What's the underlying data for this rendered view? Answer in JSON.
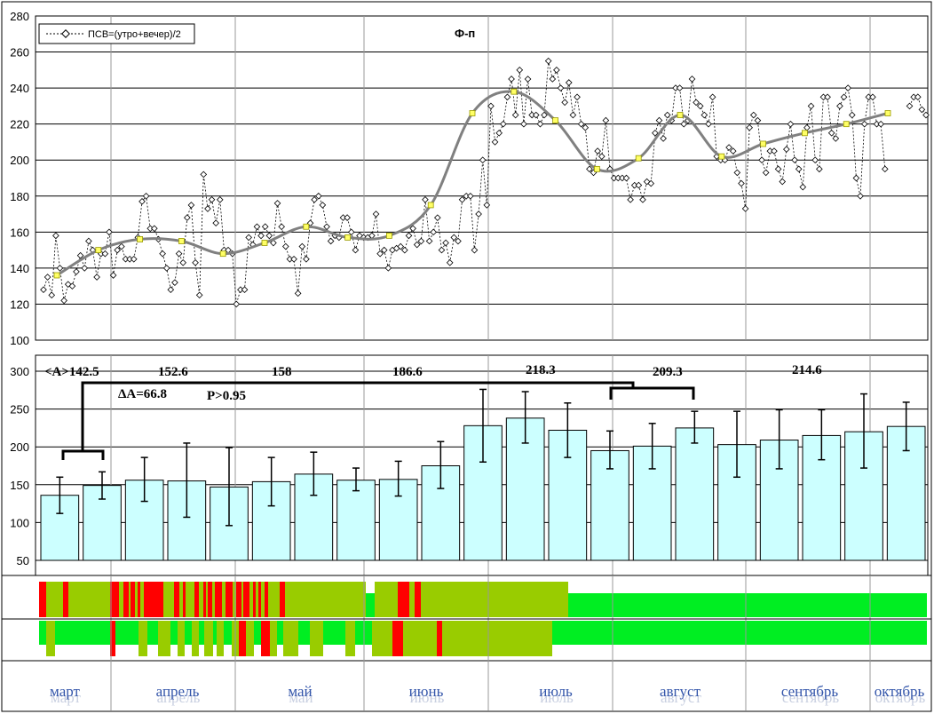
{
  "chart_data": [
    {
      "type": "line",
      "title": "Ф-п",
      "legend": {
        "label": "ПСВ=(утро+вечер)/2",
        "placement": "top-left"
      },
      "ylim": [
        100,
        280
      ],
      "yticks": [
        "100",
        "120",
        "140",
        "160",
        "180",
        "200",
        "220",
        "240",
        "260",
        "280"
      ],
      "grid": true,
      "series": [
        {
          "name": "ПСВ=(утро+вечер)/2",
          "values": [
            128,
            135,
            125,
            158,
            140,
            122,
            131,
            130,
            138,
            147,
            140,
            155,
            150,
            135,
            148,
            148,
            160,
            136,
            150,
            152,
            145,
            145,
            145,
            157,
            177,
            180,
            162,
            162,
            156,
            148,
            140,
            128,
            132,
            148,
            143,
            168,
            175,
            143,
            125,
            192,
            173,
            178,
            165,
            178,
            150,
            150,
            148,
            120,
            128,
            128,
            157,
            153,
            163,
            158,
            163,
            158,
            154,
            176,
            163,
            152,
            145,
            145,
            126,
            152,
            145,
            165,
            178,
            180,
            175,
            163,
            155,
            158,
            157,
            168,
            168,
            160,
            150,
            158,
            157,
            157,
            158,
            170,
            148,
            150,
            140,
            150,
            151,
            152,
            150,
            158,
            162,
            153,
            155,
            178,
            155,
            160,
            168,
            150,
            154,
            143,
            157,
            155,
            178,
            180,
            180,
            150,
            170,
            200,
            175,
            230,
            210,
            215,
            220,
            235,
            245,
            225,
            250,
            220,
            245,
            225,
            225,
            220,
            225,
            255,
            245,
            250,
            240,
            232,
            243,
            225,
            235,
            220,
            218,
            195,
            193,
            205,
            202,
            222,
            195,
            190,
            190,
            190,
            190,
            178,
            186,
            186,
            178,
            188,
            187,
            215,
            222,
            212,
            225,
            222,
            240,
            240,
            220,
            222,
            245,
            232,
            230,
            225,
            220,
            235,
            202,
            200,
            200,
            207,
            205,
            193,
            187,
            173,
            218,
            225,
            222,
            200,
            193,
            205,
            205,
            195,
            188,
            206,
            220,
            200,
            195,
            185,
            218,
            230,
            200,
            195,
            235,
            235,
            215,
            212,
            230,
            235,
            240,
            225,
            190,
            180,
            220,
            235,
            235,
            220,
            220,
            195,
            null,
            null,
            null,
            null,
            null,
            230,
            235,
            235,
            228,
            225
          ]
        },
        {
          "name": "trend",
          "values": [
            136,
            150,
            156,
            155,
            148,
            154,
            163,
            157,
            158,
            175,
            226,
            238,
            222,
            195,
            201,
            225,
            202,
            209,
            215,
            220,
            226
          ]
        }
      ]
    },
    {
      "type": "bar",
      "ylim": [
        50,
        300
      ],
      "yticks": [
        "50",
        "100",
        "150",
        "200",
        "250",
        "300"
      ],
      "values": [
        136,
        149,
        156,
        155,
        147,
        154,
        164,
        156,
        157,
        175,
        228,
        238,
        222,
        195,
        201,
        225,
        203,
        209,
        215,
        220,
        227
      ],
      "error_low": [
        24,
        18,
        28,
        48,
        51,
        32,
        28,
        14,
        22,
        30,
        48,
        33,
        36,
        24,
        30,
        20,
        43,
        38,
        32,
        48,
        32
      ],
      "error_high": [
        24,
        18,
        30,
        50,
        52,
        32,
        29,
        16,
        24,
        32,
        48,
        35,
        36,
        26,
        30,
        22,
        44,
        40,
        34,
        50,
        32
      ],
      "annotations": [
        "<A>142.5",
        "152.6",
        "158",
        "186.6",
        "218.3",
        "209.3",
        "214.6",
        "ΔA=66.8",
        "P>0.95"
      ]
    }
  ],
  "months": [
    "март",
    "апрель",
    "май",
    "июнь",
    "июль",
    "август",
    "сентябрь",
    "октябрь"
  ],
  "colors": {
    "bar_fill": "#ccffff",
    "trend": "#808080",
    "green": "#00ee22",
    "olive": "#99cc00",
    "red": "#ff0000"
  },
  "strips": {
    "top": [
      [
        0,
        8,
        "red"
      ],
      [
        8,
        80,
        "olive"
      ],
      [
        27,
        33,
        "red"
      ],
      [
        80,
        90,
        "red"
      ],
      [
        90,
        95,
        "olive"
      ],
      [
        95,
        101,
        "red"
      ],
      [
        101,
        103,
        "olive"
      ],
      [
        103,
        108,
        "red"
      ],
      [
        108,
        111,
        "olive"
      ],
      [
        111,
        114,
        "red"
      ],
      [
        114,
        118,
        "olive"
      ],
      [
        118,
        140,
        "red"
      ],
      [
        140,
        152,
        "olive"
      ],
      [
        152,
        158,
        "red"
      ],
      [
        158,
        162,
        "olive"
      ],
      [
        162,
        165,
        "red"
      ],
      [
        165,
        175,
        "olive"
      ],
      [
        175,
        180,
        "red"
      ],
      [
        180,
        185,
        "olive"
      ],
      [
        185,
        188,
        "red"
      ],
      [
        188,
        190,
        "olive"
      ],
      [
        190,
        195,
        "red"
      ],
      [
        195,
        198,
        "olive"
      ],
      [
        198,
        206,
        "red"
      ],
      [
        206,
        210,
        "olive"
      ],
      [
        210,
        218,
        "red"
      ],
      [
        218,
        222,
        "olive"
      ],
      [
        222,
        228,
        "red"
      ],
      [
        228,
        230,
        "olive"
      ],
      [
        230,
        237,
        "red"
      ],
      [
        237,
        241,
        "olive"
      ],
      [
        241,
        244,
        "red"
      ],
      [
        244,
        247,
        "olive"
      ],
      [
        247,
        250,
        "red"
      ],
      [
        250,
        254,
        "olive"
      ],
      [
        254,
        258,
        "red"
      ],
      [
        258,
        271,
        "olive"
      ],
      [
        271,
        277,
        "red"
      ],
      [
        277,
        368,
        "olive"
      ],
      [
        378,
        404,
        "olive"
      ],
      [
        404,
        417,
        "red"
      ],
      [
        417,
        423,
        "olive"
      ],
      [
        423,
        430,
        "red"
      ],
      [
        430,
        596,
        "olive"
      ]
    ],
    "bottom": [
      [
        8,
        18,
        "olive"
      ],
      [
        80,
        86,
        "red"
      ],
      [
        112,
        122,
        "olive"
      ],
      [
        134,
        148,
        "olive"
      ],
      [
        156,
        164,
        "olive"
      ],
      [
        172,
        180,
        "olive"
      ],
      [
        186,
        196,
        "olive"
      ],
      [
        200,
        208,
        "olive"
      ],
      [
        217,
        225,
        "olive"
      ],
      [
        225,
        233,
        "red"
      ],
      [
        233,
        242,
        "olive"
      ],
      [
        250,
        260,
        "red"
      ],
      [
        260,
        268,
        "olive"
      ],
      [
        275,
        292,
        "olive"
      ],
      [
        305,
        320,
        "olive"
      ],
      [
        345,
        356,
        "olive"
      ],
      [
        375,
        398,
        "olive"
      ],
      [
        398,
        410,
        "red"
      ],
      [
        410,
        448,
        "olive"
      ],
      [
        448,
        454,
        "red"
      ],
      [
        454,
        578,
        "olive"
      ]
    ]
  }
}
